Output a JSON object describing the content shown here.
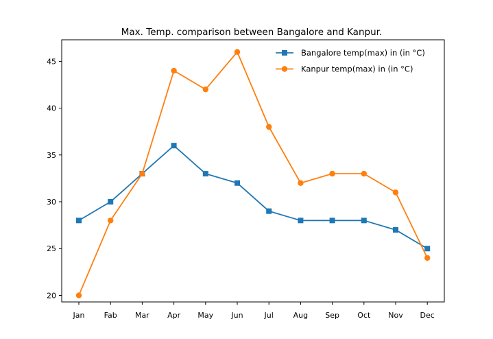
{
  "chart_data": {
    "type": "line",
    "title": "Max. Temp. comparison between Bangalore and Kanpur.",
    "xlabel": "",
    "ylabel": "",
    "categories": [
      "Jan",
      "Fab",
      "Mar",
      "Apr",
      "May",
      "Jun",
      "Jul",
      "Aug",
      "Sep",
      "Oct",
      "Nov",
      "Dec"
    ],
    "series": [
      {
        "name": "Bangalore temp(max) in (in °C)",
        "values": [
          28,
          30,
          33,
          36,
          33,
          32,
          29,
          28,
          28,
          28,
          27,
          25
        ],
        "color": "#1f77b4",
        "marker": "square"
      },
      {
        "name": "Kanpur temp(max) in (in °C)",
        "values": [
          20,
          28,
          33,
          44,
          42,
          46,
          38,
          32,
          33,
          33,
          31,
          24
        ],
        "color": "#ff7f0e",
        "marker": "circle"
      }
    ],
    "yticks": [
      20,
      25,
      30,
      35,
      40,
      45
    ],
    "ylim": [
      19.3,
      47.3
    ],
    "grid": false,
    "legend_position": "top-right"
  }
}
